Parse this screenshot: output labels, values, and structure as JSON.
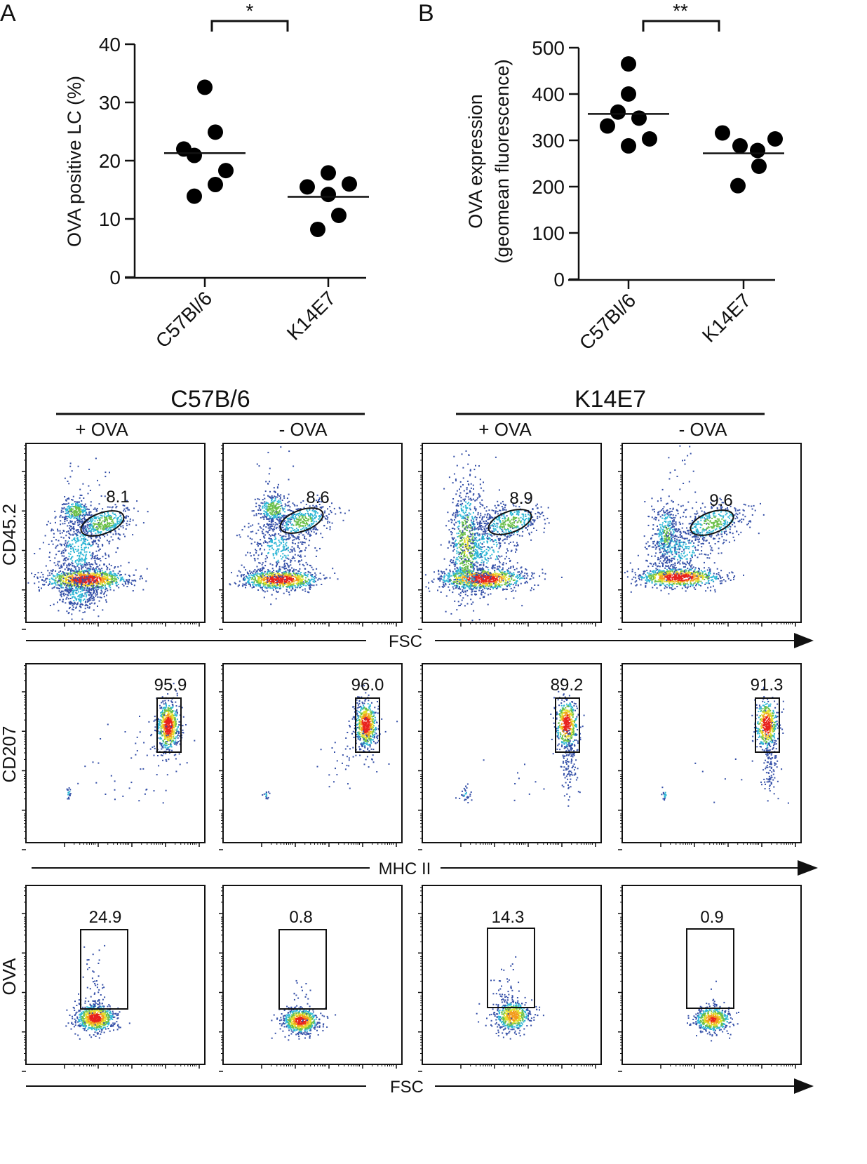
{
  "chart_data": [
    {
      "panel_label": "A",
      "type": "scatter",
      "ylabel": "OVA positive LC (%)",
      "ylim": [
        0,
        40
      ],
      "yticks": [
        "0",
        "10",
        "20",
        "30",
        "40"
      ],
      "categories": [
        "C57Bl/6",
        "K14E7"
      ],
      "series": [
        {
          "category": "C57Bl/6",
          "values": [
            32.6,
            24.9,
            22.0,
            20.9,
            18.3,
            15.9,
            13.9
          ],
          "mean": 21.3
        },
        {
          "category": "K14E7",
          "values": [
            17.9,
            15.5,
            16.0,
            14.2,
            10.6,
            8.2
          ],
          "mean": 13.8
        }
      ],
      "significance": "*",
      "grid": false
    },
    {
      "panel_label": "B",
      "type": "scatter",
      "ylabel": [
        "OVA expression",
        "(geomean fluorescence)"
      ],
      "ylim": [
        0,
        500
      ],
      "yticks": [
        "0",
        "100",
        "200",
        "300",
        "400",
        "500"
      ],
      "categories": [
        "C57Bl/6",
        "K14E7"
      ],
      "series": [
        {
          "category": "C57Bl/6",
          "values": [
            465,
            400,
            361,
            348,
            331,
            303,
            288
          ],
          "mean": 357
        },
        {
          "category": "K14E7",
          "values": [
            316,
            303,
            288,
            278,
            244,
            202
          ],
          "mean": 272
        }
      ],
      "significance": "**",
      "grid": false
    }
  ],
  "flow": {
    "groups": [
      "C57B/6",
      "K14E7"
    ],
    "columns": [
      "+ OVA",
      "- OVA",
      "+ OVA",
      "- OVA"
    ],
    "rows": [
      {
        "ylabel": "CD45.2",
        "xlabel": "FSC",
        "gate": "ellipse",
        "values": [
          "8.1",
          "8.6",
          "8.9",
          "9.6"
        ]
      },
      {
        "ylabel": "CD207",
        "xlabel": "MHC II",
        "gate": "rectangle",
        "values": [
          "95.9",
          "96.0",
          "89.2",
          "91.3"
        ]
      },
      {
        "ylabel": "OVA",
        "xlabel": "FSC",
        "gate": "rectangle",
        "values": [
          "24.9",
          "0.8",
          "14.3",
          "0.9"
        ]
      }
    ],
    "density_colors": [
      "#3550a8",
      "#2fb7d6",
      "#6cc04a",
      "#e3df2c",
      "#f39c1d",
      "#e8231e"
    ]
  }
}
